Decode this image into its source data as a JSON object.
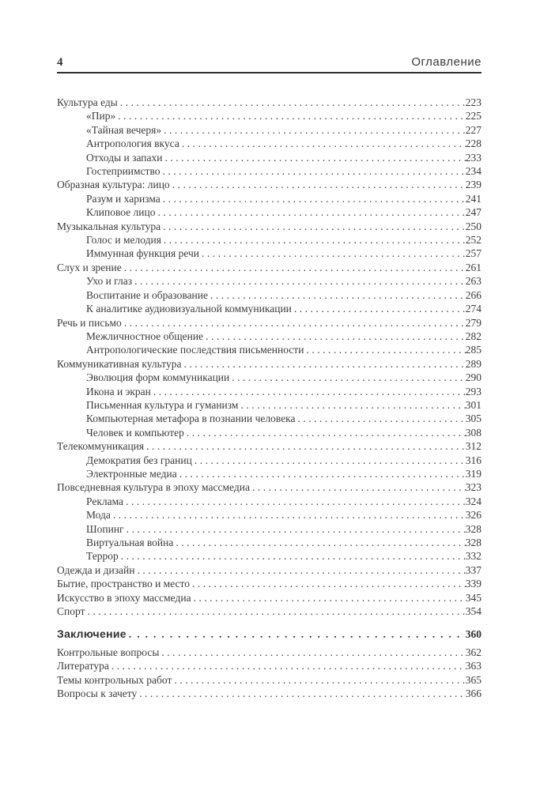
{
  "page": {
    "number": "4",
    "header_title": "Оглавление"
  },
  "colors": {
    "background": "#ffffff",
    "text": "#3b3b3b",
    "rule": "#2e2e2e"
  },
  "toc": {
    "entries": [
      {
        "label": "Культура еды",
        "page": "223",
        "level": 0
      },
      {
        "label": "«Пир»",
        "page": "225",
        "level": 1
      },
      {
        "label": "«Тайная вечеря»",
        "page": "227",
        "level": 1
      },
      {
        "label": "Антропология вкуса",
        "page": "228",
        "level": 1
      },
      {
        "label": "Отходы и запахи",
        "page": "233",
        "level": 1
      },
      {
        "label": "Гостеприимство",
        "page": "234",
        "level": 1
      },
      {
        "label": "Образная культура: лицо",
        "page": "239",
        "level": 0
      },
      {
        "label": "Разум и харизма",
        "page": "241",
        "level": 1
      },
      {
        "label": "Клиповое лицо",
        "page": "247",
        "level": 1
      },
      {
        "label": "Музыкальная культура",
        "page": "250",
        "level": 0
      },
      {
        "label": "Голос и мелодия",
        "page": "252",
        "level": 1
      },
      {
        "label": "Иммунная функция речи",
        "page": "257",
        "level": 1
      },
      {
        "label": "Слух и зрение",
        "page": "261",
        "level": 0
      },
      {
        "label": "Ухо и глаз",
        "page": "263",
        "level": 1
      },
      {
        "label": "Воспитание и образование",
        "page": "266",
        "level": 1
      },
      {
        "label": "К аналитике аудиовизуальной коммуникации",
        "page": "274",
        "level": 1
      },
      {
        "label": "Речь и письмо",
        "page": "279",
        "level": 0
      },
      {
        "label": "Межличностное общение",
        "page": "282",
        "level": 1
      },
      {
        "label": "Антропологические последствия письменности",
        "page": "285",
        "level": 1
      },
      {
        "label": "Коммуникативная культура",
        "page": "289",
        "level": 0
      },
      {
        "label": "Эволюция форм коммуникации",
        "page": "290",
        "level": 1
      },
      {
        "label": "Икона и экран",
        "page": "293",
        "level": 1
      },
      {
        "label": "Письменная культура и гуманизм",
        "page": "301",
        "level": 1
      },
      {
        "label": "Компьютерная метафора в познании человека",
        "page": "305",
        "level": 1
      },
      {
        "label": "Человек и компьютер",
        "page": "308",
        "level": 1
      },
      {
        "label": "Телекоммуникация",
        "page": "312",
        "level": 0
      },
      {
        "label": "Демократия без границ",
        "page": "316",
        "level": 1
      },
      {
        "label": "Электронные медиа",
        "page": "319",
        "level": 1
      },
      {
        "label": "Повседневная культура в эпоху массмедиа",
        "page": "323",
        "level": 0
      },
      {
        "label": "Реклама",
        "page": "324",
        "level": 1
      },
      {
        "label": "Мода",
        "page": "326",
        "level": 1
      },
      {
        "label": "Шопинг",
        "page": "328",
        "level": 1
      },
      {
        "label": "Виртуальная война",
        "page": "328",
        "level": 1
      },
      {
        "label": "Террор",
        "page": "332",
        "level": 1
      },
      {
        "label": "Одежда и дизайн",
        "page": "337",
        "level": 0
      },
      {
        "label": "Бытие, пространство и место",
        "page": "339",
        "level": 0
      },
      {
        "label": "Искусство в эпоху массмедиа",
        "page": "345",
        "level": 0
      },
      {
        "label": "Спорт",
        "page": "354",
        "level": 0
      },
      {
        "label": "Заключение",
        "page": "360",
        "level": 0,
        "bold": true,
        "gap_before": "large"
      },
      {
        "label": "Контрольные вопросы",
        "page": "362",
        "level": 0,
        "gap_before": "small"
      },
      {
        "label": "Литература",
        "page": "363",
        "level": 0
      },
      {
        "label": "Темы контрольных работ",
        "page": "365",
        "level": 0
      },
      {
        "label": "Вопросы к зачету",
        "page": "366",
        "level": 0
      }
    ]
  }
}
